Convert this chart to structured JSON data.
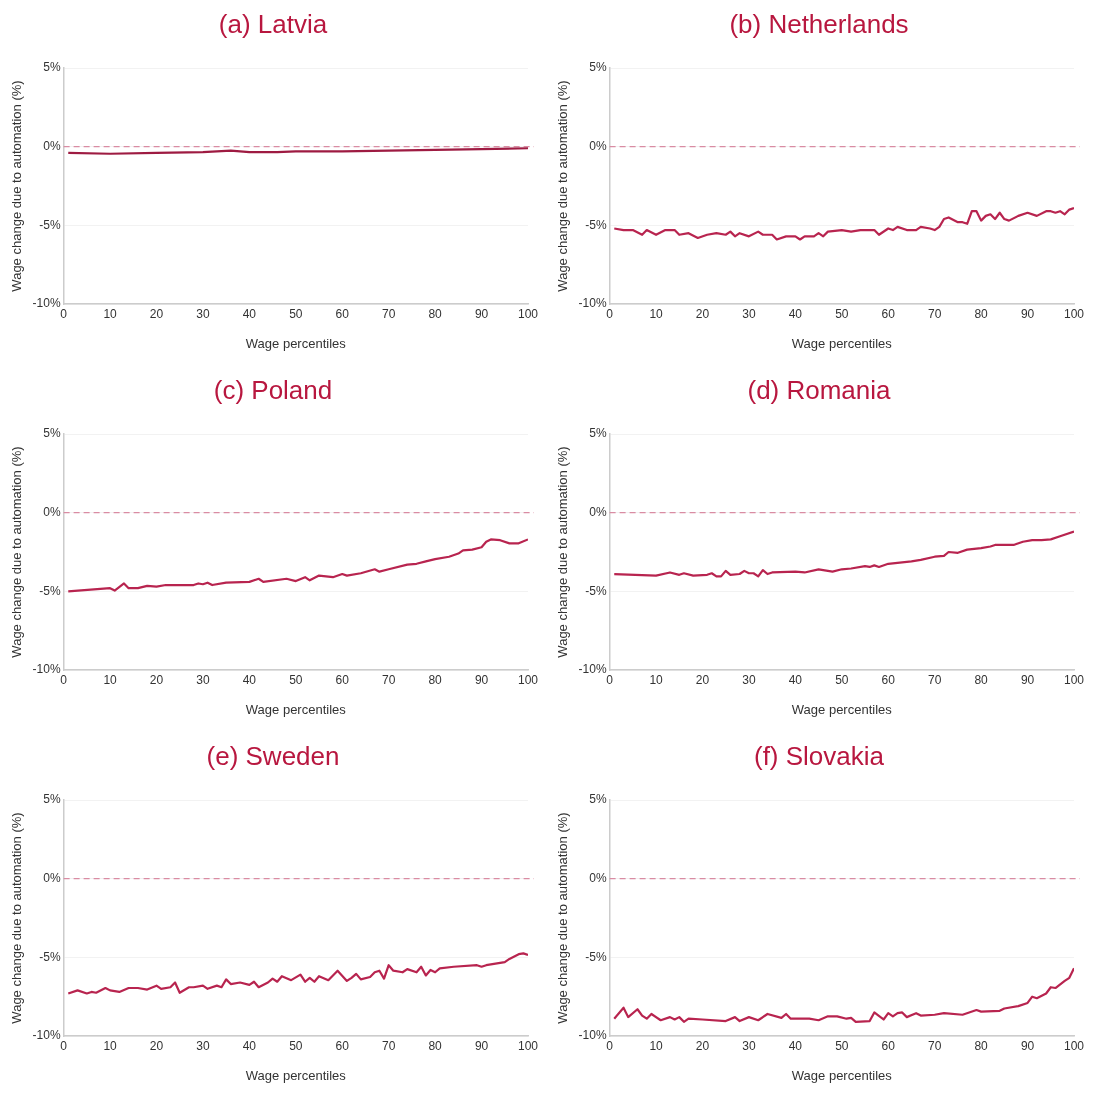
{
  "chart_data": [
    {
      "type": "line",
      "title": "(a) Latvia",
      "xlabel": "Wage percentiles",
      "ylabel": "Wage change due to automation (%)",
      "xlim": [
        0,
        100
      ],
      "ylim": [
        -10,
        5
      ],
      "xticks": [
        0,
        10,
        20,
        30,
        40,
        50,
        60,
        70,
        80,
        90,
        100
      ],
      "yticks": [
        {
          "value": 5,
          "label": "5%"
        },
        {
          "value": 0,
          "label": "0%"
        },
        {
          "value": -5,
          "label": "-5%"
        },
        {
          "value": -10,
          "label": "-10%"
        }
      ],
      "grid": "y",
      "ref_lines": [
        {
          "axis": "y",
          "value": 0,
          "color": "#d98ca3",
          "line_style": "dashed"
        }
      ],
      "series": [
        {
          "color": "#9e1b42",
          "x": [
            1,
            10,
            20,
            30,
            36,
            40,
            46,
            50,
            60,
            70,
            80,
            90,
            100
          ],
          "values": [
            -0.4,
            -0.45,
            -0.4,
            -0.35,
            -0.25,
            -0.35,
            -0.35,
            -0.3,
            -0.3,
            -0.25,
            -0.2,
            -0.15,
            -0.1
          ]
        }
      ]
    },
    {
      "type": "line",
      "title": "(b) Netherlands",
      "xlabel": "Wage percentiles",
      "ylabel": "Wage change due to automation (%)",
      "xlim": [
        0,
        100
      ],
      "ylim": [
        -10,
        5
      ],
      "xticks": [
        0,
        10,
        20,
        30,
        40,
        50,
        60,
        70,
        80,
        90,
        100
      ],
      "yticks": [
        {
          "value": 5,
          "label": "5%"
        },
        {
          "value": 0,
          "label": "0%"
        },
        {
          "value": -5,
          "label": "-5%"
        },
        {
          "value": -10,
          "label": "-10%"
        }
      ],
      "grid": "y",
      "ref_lines": [
        {
          "axis": "y",
          "value": 0,
          "color": "#d98ca3",
          "line_style": "dashed"
        }
      ],
      "series": [
        {
          "color": "#b8244f",
          "x": [
            1,
            3,
            5,
            7,
            8,
            10,
            12,
            14,
            15,
            17,
            19,
            21,
            23,
            25,
            26,
            27,
            28,
            30,
            32,
            33,
            35,
            36,
            38,
            40,
            41,
            42,
            44,
            45,
            46,
            47,
            50,
            52,
            54,
            57,
            58,
            60,
            61,
            62,
            64,
            66,
            67,
            69,
            70,
            71,
            72,
            73,
            75,
            76,
            77,
            78,
            79,
            80,
            81,
            82,
            83,
            84,
            85,
            86,
            88,
            90,
            92,
            94,
            95,
            96,
            97,
            98,
            99,
            100
          ],
          "values": [
            -5.2,
            -5.3,
            -5.3,
            -5.6,
            -5.3,
            -5.6,
            -5.3,
            -5.3,
            -5.6,
            -5.5,
            -5.8,
            -5.6,
            -5.5,
            -5.6,
            -5.4,
            -5.7,
            -5.5,
            -5.7,
            -5.4,
            -5.6,
            -5.6,
            -5.9,
            -5.7,
            -5.7,
            -5.9,
            -5.7,
            -5.7,
            -5.5,
            -5.7,
            -5.4,
            -5.3,
            -5.4,
            -5.3,
            -5.3,
            -5.6,
            -5.2,
            -5.3,
            -5.1,
            -5.3,
            -5.3,
            -5.1,
            -5.2,
            -5.3,
            -5.1,
            -4.6,
            -4.5,
            -4.8,
            -4.8,
            -4.9,
            -4.1,
            -4.1,
            -4.7,
            -4.4,
            -4.3,
            -4.6,
            -4.2,
            -4.6,
            -4.7,
            -4.4,
            -4.2,
            -4.4,
            -4.1,
            -4.1,
            -4.2,
            -4.1,
            -4.3,
            -4.0,
            -3.9
          ]
        }
      ]
    },
    {
      "type": "line",
      "title": "(c) Poland",
      "xlabel": "Wage percentiles",
      "ylabel": "Wage change due to automation (%)",
      "xlim": [
        0,
        100
      ],
      "ylim": [
        -10,
        5
      ],
      "xticks": [
        0,
        10,
        20,
        30,
        40,
        50,
        60,
        70,
        80,
        90,
        100
      ],
      "yticks": [
        {
          "value": 5,
          "label": "5%"
        },
        {
          "value": 0,
          "label": "0%"
        },
        {
          "value": -5,
          "label": "-5%"
        },
        {
          "value": -10,
          "label": "-10%"
        }
      ],
      "grid": "y",
      "ref_lines": [
        {
          "axis": "y",
          "value": 0,
          "color": "#d98ca3",
          "line_style": "dashed"
        }
      ],
      "series": [
        {
          "color": "#b8244f",
          "x": [
            1,
            10,
            11,
            13,
            14,
            16,
            18,
            20,
            22,
            28,
            29,
            30,
            31,
            32,
            35,
            40,
            42,
            43,
            48,
            50,
            52,
            53,
            55,
            58,
            60,
            61,
            64,
            67,
            68,
            70,
            74,
            76,
            78,
            80,
            83,
            85,
            86,
            88,
            90,
            91,
            92,
            94,
            96,
            98,
            100
          ],
          "values": [
            -5.0,
            -4.8,
            -4.95,
            -4.5,
            -4.8,
            -4.8,
            -4.65,
            -4.7,
            -4.6,
            -4.6,
            -4.5,
            -4.55,
            -4.45,
            -4.6,
            -4.45,
            -4.4,
            -4.2,
            -4.4,
            -4.2,
            -4.35,
            -4.1,
            -4.3,
            -4.0,
            -4.1,
            -3.9,
            -4.0,
            -3.85,
            -3.6,
            -3.75,
            -3.6,
            -3.3,
            -3.25,
            -3.1,
            -2.95,
            -2.8,
            -2.6,
            -2.4,
            -2.35,
            -2.2,
            -1.85,
            -1.7,
            -1.75,
            -1.95,
            -1.95,
            -1.7
          ]
        }
      ]
    },
    {
      "type": "line",
      "title": "(d) Romania",
      "xlabel": "Wage percentiles",
      "ylabel": "Wage change due to automation (%)",
      "xlim": [
        0,
        100
      ],
      "ylim": [
        -10,
        5
      ],
      "xticks": [
        0,
        10,
        20,
        30,
        40,
        50,
        60,
        70,
        80,
        90,
        100
      ],
      "yticks": [
        {
          "value": 5,
          "label": "5%"
        },
        {
          "value": 0,
          "label": "0%"
        },
        {
          "value": -5,
          "label": "-5%"
        },
        {
          "value": -10,
          "label": "-10%"
        }
      ],
      "grid": "y",
      "ref_lines": [
        {
          "axis": "y",
          "value": 0,
          "color": "#d98ca3",
          "line_style": "dashed"
        }
      ],
      "series": [
        {
          "color": "#b8244f",
          "x": [
            1,
            10,
            13,
            15,
            16,
            18,
            21,
            22,
            23,
            24,
            25,
            26,
            28,
            29,
            30,
            31,
            32,
            33,
            34,
            35,
            40,
            42,
            45,
            48,
            50,
            52,
            55,
            56,
            57,
            58,
            60,
            65,
            67,
            70,
            72,
            73,
            75,
            77,
            80,
            82,
            83,
            87,
            89,
            91,
            93,
            95,
            97,
            100
          ],
          "values": [
            -3.9,
            -4.0,
            -3.8,
            -3.95,
            -3.85,
            -4.0,
            -3.95,
            -3.85,
            -4.05,
            -4.05,
            -3.7,
            -3.95,
            -3.9,
            -3.7,
            -3.85,
            -3.85,
            -4.05,
            -3.65,
            -3.9,
            -3.8,
            -3.75,
            -3.8,
            -3.6,
            -3.75,
            -3.6,
            -3.55,
            -3.4,
            -3.45,
            -3.35,
            -3.45,
            -3.25,
            -3.1,
            -3.0,
            -2.8,
            -2.75,
            -2.5,
            -2.55,
            -2.35,
            -2.25,
            -2.15,
            -2.05,
            -2.05,
            -1.85,
            -1.75,
            -1.75,
            -1.7,
            -1.5,
            -1.2
          ]
        }
      ]
    },
    {
      "type": "line",
      "title": "(e) Sweden",
      "xlabel": "Wage percentiles",
      "ylabel": "Wage change due to automation (%)",
      "xlim": [
        0,
        100
      ],
      "ylim": [
        -10,
        5
      ],
      "xticks": [
        0,
        10,
        20,
        30,
        40,
        50,
        60,
        70,
        80,
        90,
        100
      ],
      "yticks": [
        {
          "value": 5,
          "label": "5%"
        },
        {
          "value": 0,
          "label": "0%"
        },
        {
          "value": -5,
          "label": "-5%"
        },
        {
          "value": -10,
          "label": "-10%"
        }
      ],
      "grid": "y",
      "ref_lines": [
        {
          "axis": "y",
          "value": 0,
          "color": "#d98ca3",
          "line_style": "dashed"
        }
      ],
      "series": [
        {
          "color": "#b8244f",
          "x": [
            1,
            3,
            5,
            6,
            7,
            9,
            10,
            12,
            14,
            16,
            18,
            20,
            21,
            23,
            24,
            25,
            27,
            28,
            30,
            31,
            33,
            34,
            35,
            36,
            38,
            40,
            41,
            42,
            44,
            45,
            46,
            47,
            49,
            51,
            52,
            53,
            54,
            55,
            57,
            59,
            61,
            62,
            63,
            64,
            66,
            67,
            68,
            69,
            70,
            71,
            73,
            74,
            76,
            77,
            78,
            79,
            80,
            81,
            84,
            89,
            90,
            91,
            94,
            95,
            96,
            98,
            99,
            100
          ],
          "values": [
            -7.3,
            -7.1,
            -7.3,
            -7.2,
            -7.25,
            -6.95,
            -7.1,
            -7.2,
            -6.95,
            -6.95,
            -7.05,
            -6.8,
            -7.0,
            -6.9,
            -6.6,
            -7.25,
            -6.9,
            -6.9,
            -6.8,
            -7.0,
            -6.8,
            -6.9,
            -6.4,
            -6.7,
            -6.6,
            -6.75,
            -6.55,
            -6.9,
            -6.6,
            -6.35,
            -6.55,
            -6.2,
            -6.45,
            -6.1,
            -6.55,
            -6.3,
            -6.55,
            -6.2,
            -6.45,
            -5.85,
            -6.5,
            -6.3,
            -6.05,
            -6.4,
            -6.25,
            -5.95,
            -5.85,
            -6.35,
            -5.5,
            -5.85,
            -5.95,
            -5.75,
            -5.95,
            -5.6,
            -6.15,
            -5.8,
            -5.95,
            -5.7,
            -5.6,
            -5.5,
            -5.6,
            -5.5,
            -5.35,
            -5.3,
            -5.1,
            -4.8,
            -4.75,
            -4.85
          ]
        }
      ]
    },
    {
      "type": "line",
      "title": "(f) Slovakia",
      "xlabel": "Wage percentiles",
      "ylabel": "Wage change due to automation (%)",
      "xlim": [
        0,
        100
      ],
      "ylim": [
        -10,
        5
      ],
      "xticks": [
        0,
        10,
        20,
        30,
        40,
        50,
        60,
        70,
        80,
        90,
        100
      ],
      "yticks": [
        {
          "value": 5,
          "label": "5%"
        },
        {
          "value": 0,
          "label": "0%"
        },
        {
          "value": -5,
          "label": "-5%"
        },
        {
          "value": -10,
          "label": "-10%"
        }
      ],
      "grid": "y",
      "ref_lines": [
        {
          "axis": "y",
          "value": 0,
          "color": "#d98ca3",
          "line_style": "dashed"
        }
      ],
      "series": [
        {
          "color": "#b8244f",
          "x": [
            1,
            3,
            4,
            6,
            7,
            8,
            9,
            11,
            13,
            14,
            15,
            16,
            17,
            20,
            25,
            27,
            28,
            30,
            32,
            34,
            37,
            38,
            39,
            43,
            45,
            47,
            49,
            51,
            52,
            53,
            56,
            57,
            59,
            60,
            61,
            62,
            63,
            64,
            66,
            67,
            70,
            72,
            76,
            79,
            80,
            84,
            85,
            88,
            90,
            91,
            92,
            94,
            95,
            96,
            98,
            99,
            100
          ],
          "values": [
            -8.9,
            -8.2,
            -8.8,
            -8.3,
            -8.7,
            -8.9,
            -8.6,
            -9.0,
            -8.8,
            -8.95,
            -8.8,
            -9.1,
            -8.9,
            -8.95,
            -9.05,
            -8.8,
            -9.05,
            -8.8,
            -9.0,
            -8.6,
            -8.85,
            -8.6,
            -8.9,
            -8.9,
            -9.0,
            -8.75,
            -8.75,
            -8.9,
            -8.85,
            -9.1,
            -9.05,
            -8.5,
            -8.95,
            -8.55,
            -8.75,
            -8.55,
            -8.5,
            -8.8,
            -8.55,
            -8.7,
            -8.65,
            -8.55,
            -8.65,
            -8.35,
            -8.45,
            -8.4,
            -8.25,
            -8.1,
            -7.9,
            -7.5,
            -7.6,
            -7.3,
            -6.9,
            -6.95,
            -6.5,
            -6.3,
            -5.7
          ]
        }
      ]
    }
  ]
}
